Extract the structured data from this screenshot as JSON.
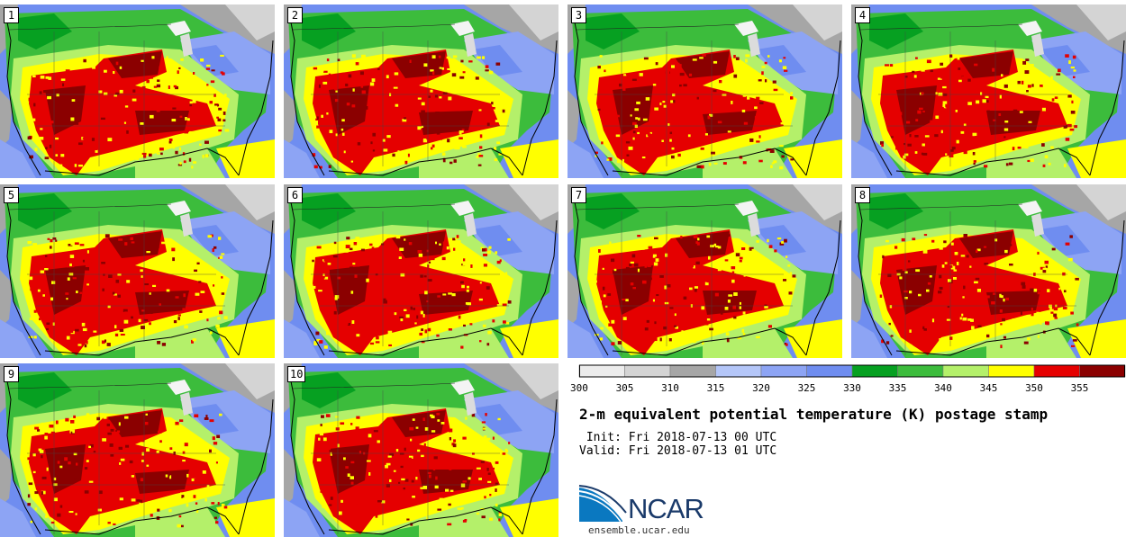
{
  "chart_data": {
    "type": "heatmap",
    "title": "2-m equivalent potential temperature (K) postage stamp",
    "init": " Init: Fri 2018-07-13 00 UTC",
    "valid": "Valid: Fri 2018-07-13 01 UTC",
    "members": [
      "1",
      "2",
      "3",
      "4",
      "5",
      "6",
      "7",
      "8",
      "9",
      "10"
    ],
    "colorbar": {
      "unit": "K",
      "levels": [
        300,
        305,
        310,
        315,
        320,
        325,
        330,
        335,
        340,
        345,
        350,
        355
      ],
      "colors": [
        "#ececec",
        "#d4d4d4",
        "#a6a6a6",
        "#b4c6f8",
        "#8da4f4",
        "#6f8df0",
        "#06a021",
        "#3cbc3c",
        "#b4f06a",
        "#ffff00",
        "#e50000",
        "#8b0000"
      ]
    }
  },
  "logo": {
    "name": "NCAR",
    "url": "ensemble.ucar.edu"
  }
}
